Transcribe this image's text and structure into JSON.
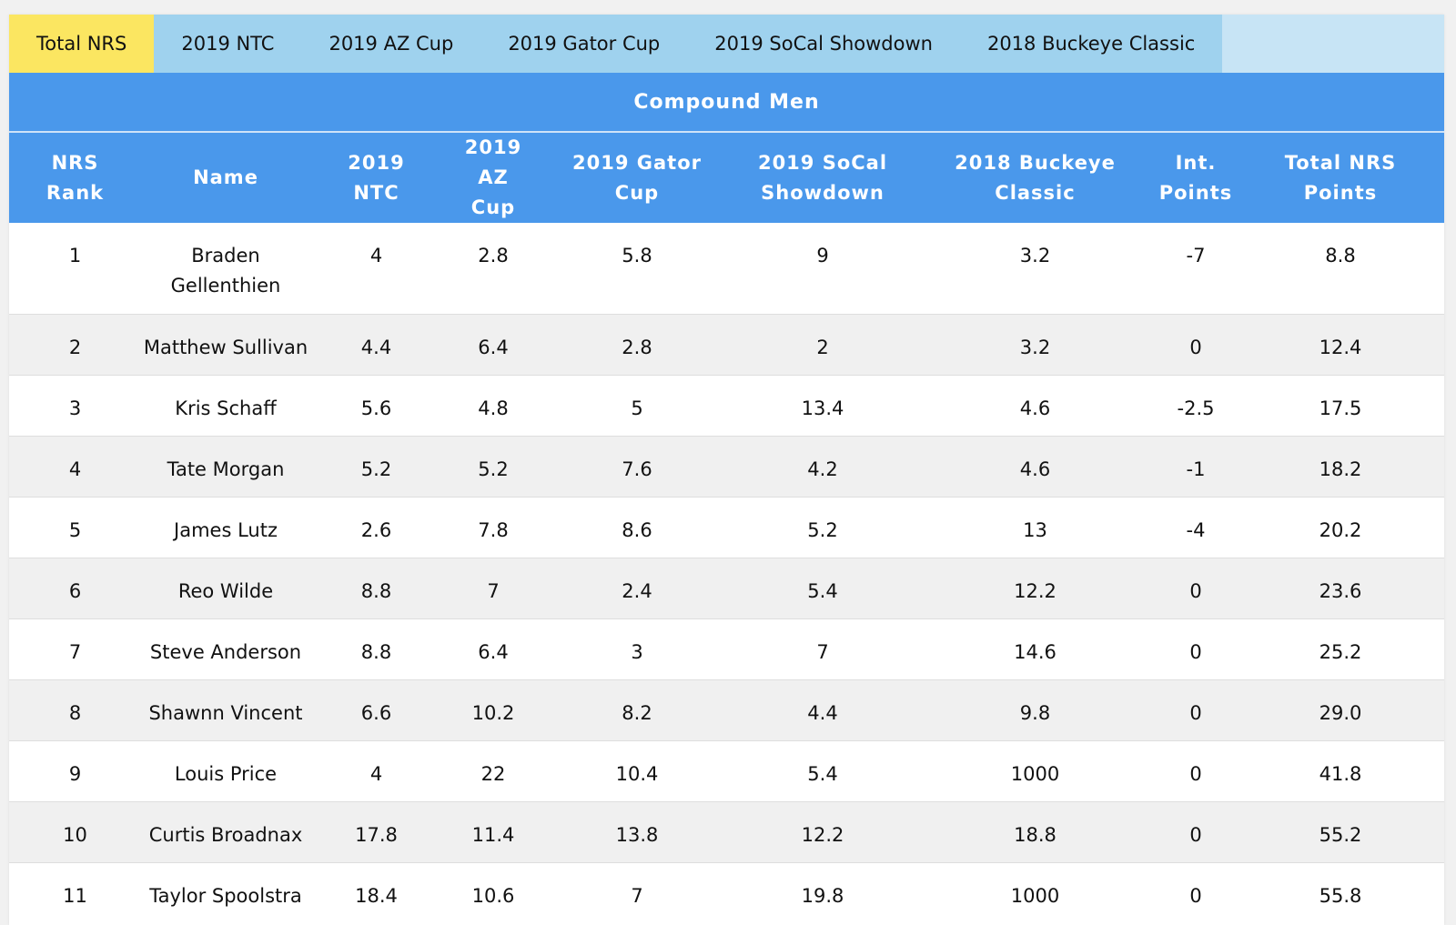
{
  "tabs": [
    {
      "label": "Total NRS",
      "active": true
    },
    {
      "label": "2019 NTC",
      "active": false
    },
    {
      "label": "2019 AZ Cup",
      "active": false
    },
    {
      "label": "2019 Gator Cup",
      "active": false
    },
    {
      "label": "2019 SoCal Showdown",
      "active": false
    },
    {
      "label": "2018 Buckeye Classic",
      "active": false
    }
  ],
  "table_title": "Compound Men",
  "columns": [
    [
      "NRS",
      "Rank"
    ],
    [
      "Name"
    ],
    [
      "2019",
      "NTC"
    ],
    [
      "2019 AZ",
      "Cup"
    ],
    [
      "2019 Gator",
      "Cup"
    ],
    [
      "2019 SoCal",
      "Showdown"
    ],
    [
      "2018 Buckeye",
      "Classic"
    ],
    [
      "Int.",
      "Points"
    ],
    [
      "Total NRS",
      "Points"
    ]
  ],
  "rows": [
    [
      "1",
      [
        "Braden",
        "Gellenthien"
      ],
      "4",
      "2.8",
      "5.8",
      "9",
      "3.2",
      "-7",
      "8.8"
    ],
    [
      "2",
      [
        "Matthew Sullivan"
      ],
      "4.4",
      "6.4",
      "2.8",
      "2",
      "3.2",
      "0",
      "12.4"
    ],
    [
      "3",
      [
        "Kris Schaff"
      ],
      "5.6",
      "4.8",
      "5",
      "13.4",
      "4.6",
      "-2.5",
      "17.5"
    ],
    [
      "4",
      [
        "Tate Morgan"
      ],
      "5.2",
      "5.2",
      "7.6",
      "4.2",
      "4.6",
      "-1",
      "18.2"
    ],
    [
      "5",
      [
        "James Lutz"
      ],
      "2.6",
      "7.8",
      "8.6",
      "5.2",
      "13",
      "-4",
      "20.2"
    ],
    [
      "6",
      [
        "Reo Wilde"
      ],
      "8.8",
      "7",
      "2.4",
      "5.4",
      "12.2",
      "0",
      "23.6"
    ],
    [
      "7",
      [
        "Steve Anderson"
      ],
      "8.8",
      "6.4",
      "3",
      "7",
      "14.6",
      "0",
      "25.2"
    ],
    [
      "8",
      [
        "Shawnn Vincent"
      ],
      "6.6",
      "10.2",
      "8.2",
      "4.4",
      "9.8",
      "0",
      "29.0"
    ],
    [
      "9",
      [
        "Louis Price"
      ],
      "4",
      "22",
      "10.4",
      "5.4",
      "1000",
      "0",
      "41.8"
    ],
    [
      "10",
      [
        "Curtis Broadnax"
      ],
      "17.8",
      "11.4",
      "13.8",
      "12.2",
      "18.8",
      "0",
      "55.2"
    ],
    [
      "11",
      [
        "Taylor Spoolstra"
      ],
      "18.4",
      "10.6",
      "7",
      "19.8",
      "1000",
      "0",
      "55.8"
    ]
  ]
}
